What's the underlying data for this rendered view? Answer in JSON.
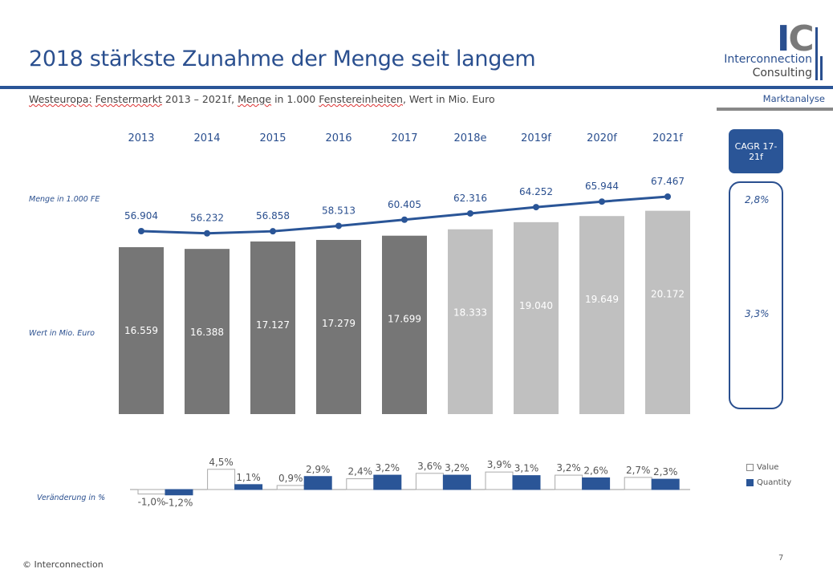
{
  "header": {
    "title": "2018 stärkste Zunahme der Menge seit langem",
    "subtitle_parts": [
      "Westeuropa:",
      "Fenstermarkt",
      " 2013 – 2021f, ",
      "Menge",
      " in 1.000 ",
      "Fenstereinheiten",
      ", Wert in Mio. Euro"
    ],
    "section": "Marktanalyse",
    "logo": {
      "mark": "IC",
      "line1": "Interconnection",
      "line2": "Consulting"
    }
  },
  "labels": {
    "quantity_axis": "Menge in 1.000  FE",
    "value_axis": "Wert in Mio. Euro",
    "change_axis": "Veränderung in %"
  },
  "cagr": {
    "header": "CAGR 17-21f",
    "quantity": "2,8%",
    "value": "3,3%"
  },
  "footer": {
    "copyright": "© Interconnection",
    "page": "7"
  },
  "colors": {
    "actual": "#767676",
    "forecast": "#c0c0c0",
    "line": "#2a5597",
    "accent": "#2a4f8f"
  },
  "chart_data": [
    {
      "type": "bar+line",
      "categories": [
        "2013",
        "2014",
        "2015",
        "2016",
        "2017",
        "2018e",
        "2019f",
        "2020f",
        "2021f"
      ],
      "series": [
        {
          "name": "Wert in Mio. Euro",
          "type": "bar",
          "values": [
            16559,
            16388,
            17127,
            17279,
            17699,
            18333,
            19040,
            19649,
            20172
          ],
          "labels": [
            "16.559",
            "16.388",
            "17.127",
            "17.279",
            "17.699",
            "18.333",
            "19.040",
            "19.649",
            "20.172"
          ]
        },
        {
          "name": "Menge in 1.000 FE",
          "type": "line",
          "values": [
            56904,
            56232,
            56858,
            58513,
            60405,
            62316,
            64252,
            65944,
            67467
          ],
          "labels": [
            "56.904",
            "56.232",
            "56.858",
            "58.513",
            "60.405",
            "62.316",
            "64.252",
            "65.944",
            "67.467"
          ]
        }
      ]
    },
    {
      "type": "bar",
      "categories": [
        "2014",
        "2015",
        "2016",
        "2017",
        "2018e",
        "2019f",
        "2020f",
        "2021f"
      ],
      "legend_position": "right",
      "series": [
        {
          "name": "Value",
          "values": [
            -1.0,
            4.5,
            0.9,
            2.4,
            3.6,
            3.9,
            3.2,
            2.7
          ],
          "labels": [
            "-1,0%",
            "4,5%",
            "0,9%",
            "2,4%",
            "3,6%",
            "3,9%",
            "3,2%",
            "2,7%"
          ]
        },
        {
          "name": "Quantity",
          "values": [
            -1.2,
            1.1,
            2.9,
            3.2,
            3.2,
            3.1,
            2.6,
            2.3
          ],
          "labels": [
            "-1,2%",
            "1,1%",
            "2,9%",
            "3,2%",
            "3,2%",
            "3,1%",
            "2,6%",
            "2,3%"
          ]
        }
      ]
    }
  ]
}
